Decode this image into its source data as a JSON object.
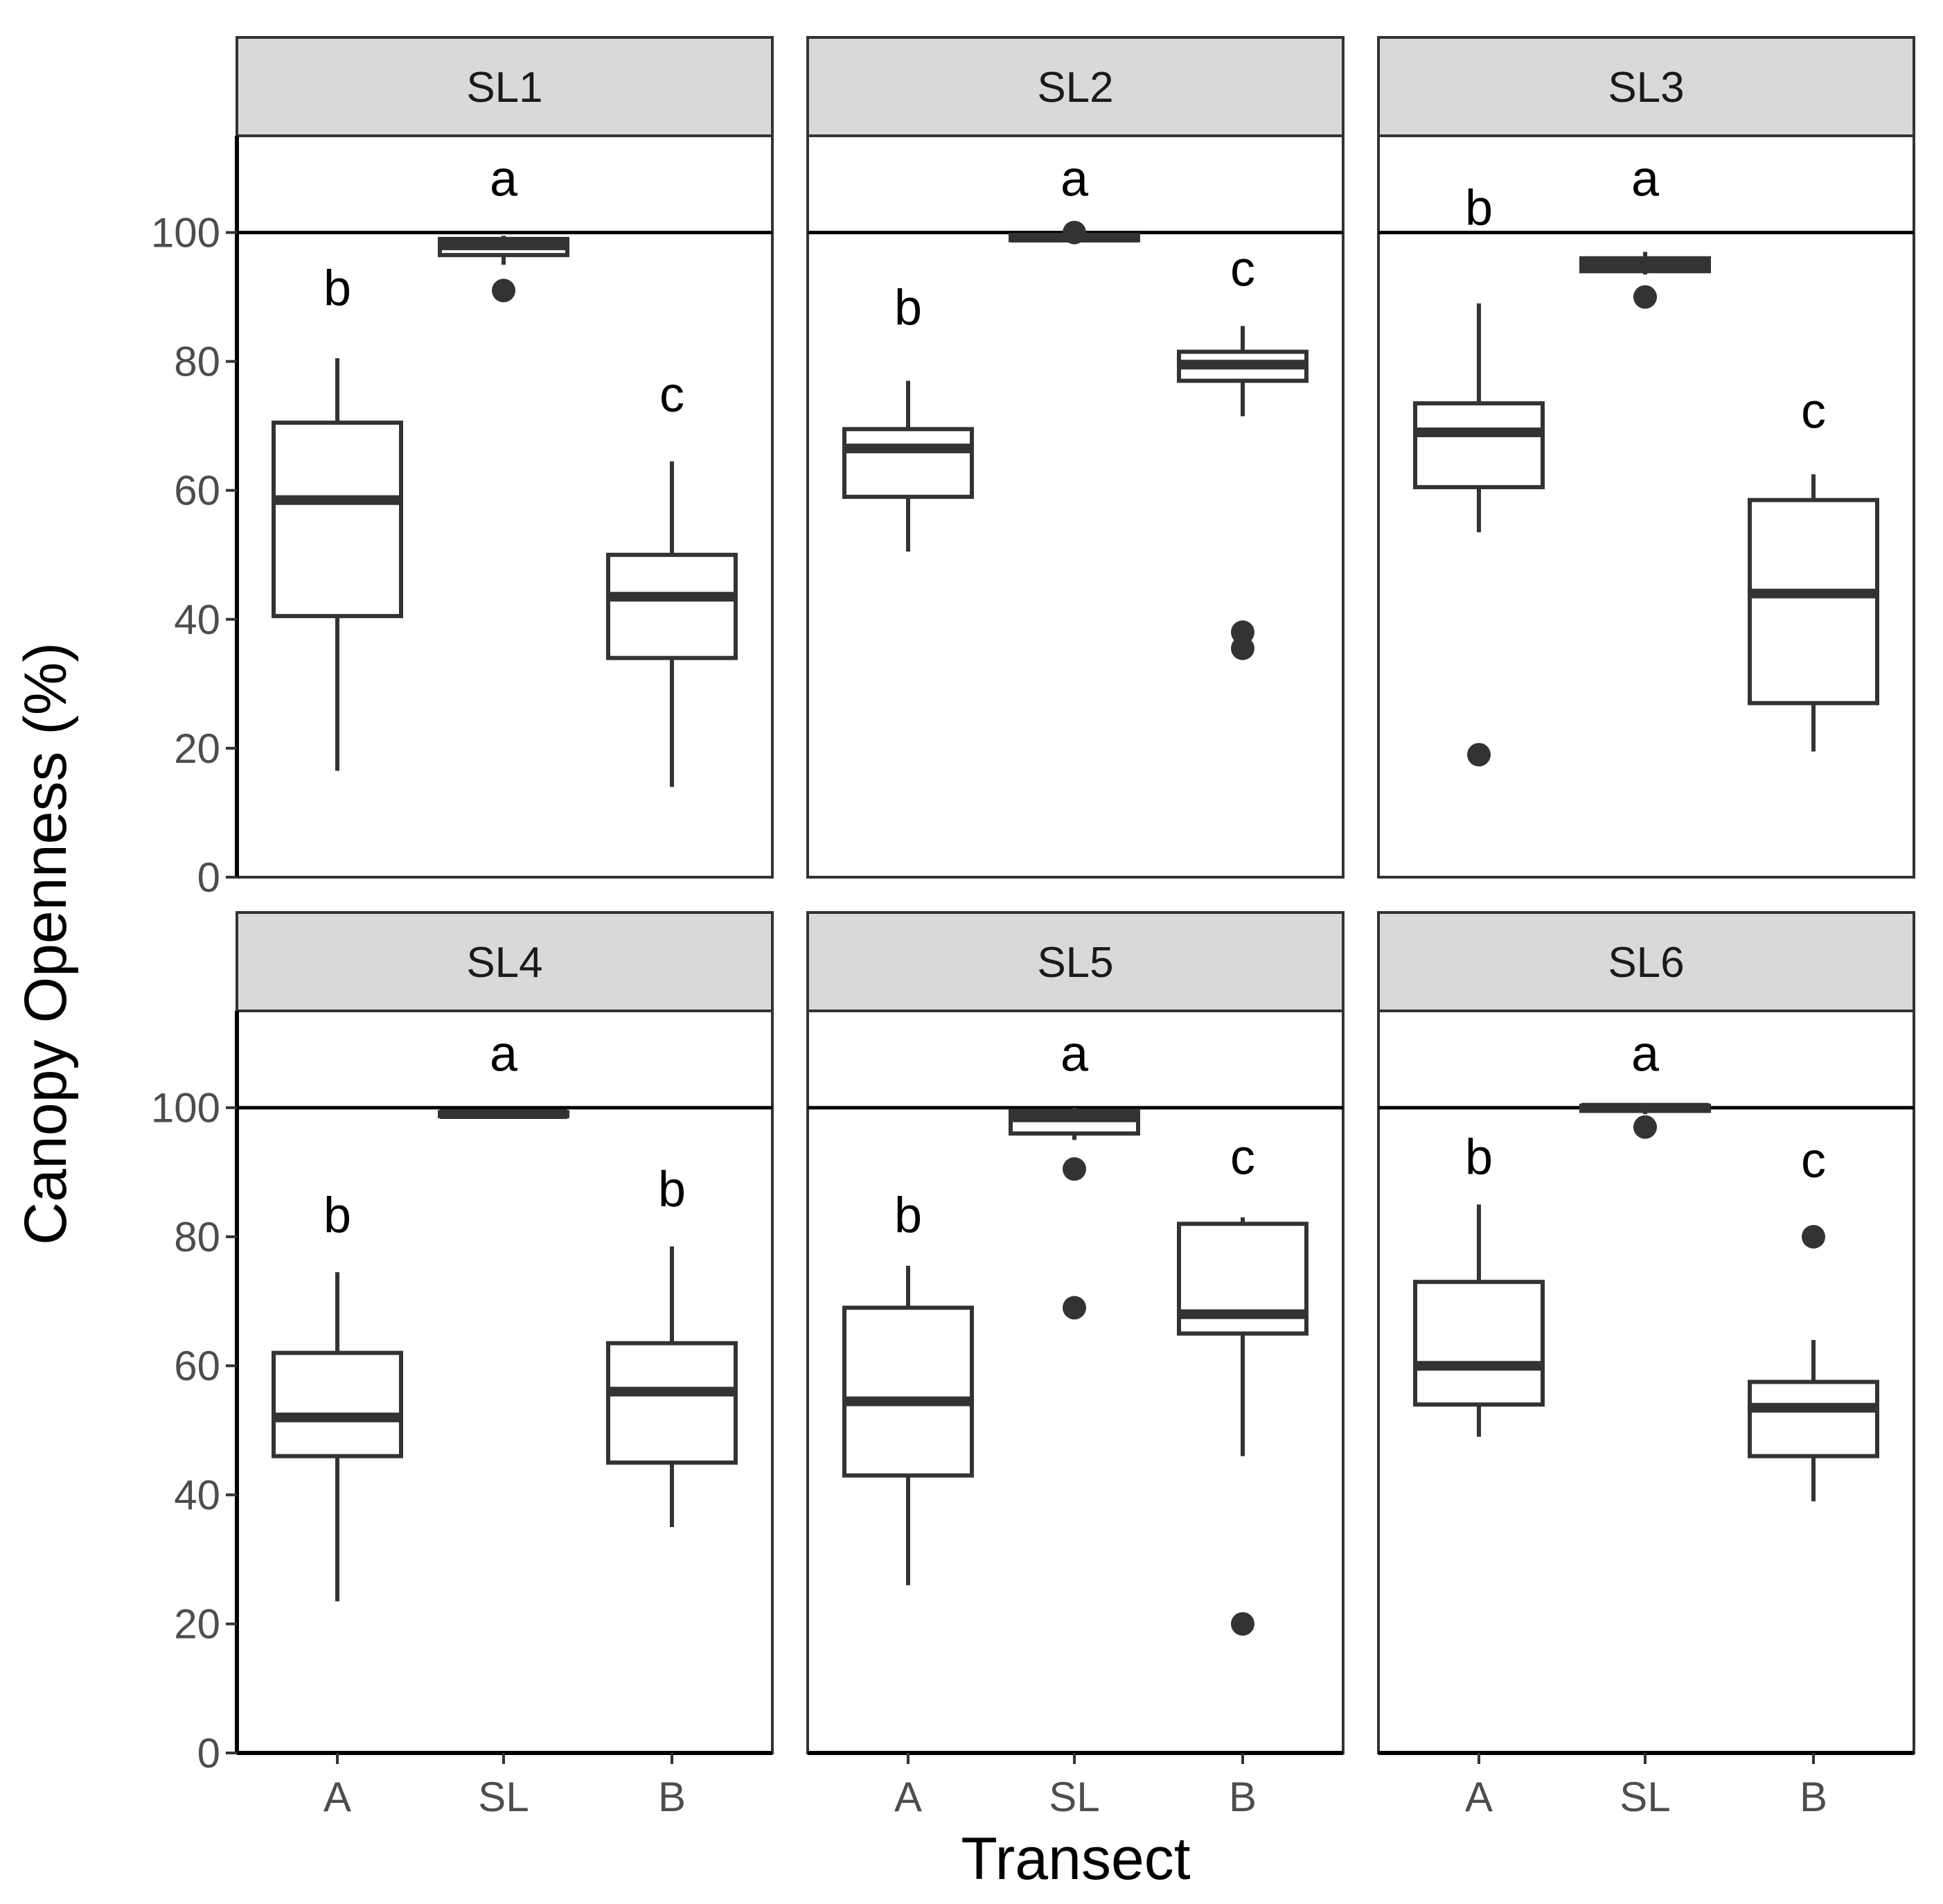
{
  "chart_data": {
    "type": "boxplot",
    "xlabel": "Transect",
    "ylabel": "Canopy Openness (%)",
    "categories": [
      "A",
      "SL",
      "B"
    ],
    "y_ticks": [
      "0",
      "20",
      "40",
      "60",
      "80",
      "100"
    ],
    "ylim": [
      0,
      115
    ],
    "reference_line": 100,
    "panels": [
      {
        "title": "SL1",
        "boxes": [
          {
            "cat": "A",
            "min": 16.5,
            "q1": 40.5,
            "median": 58.5,
            "q3": 70.5,
            "max": 80.5,
            "outliers": [],
            "letter": "b",
            "letter_y": 91.5
          },
          {
            "cat": "SL",
            "min": 95,
            "q1": 96.5,
            "median": 98,
            "q3": 99,
            "max": 99.5,
            "outliers": [
              91
            ],
            "letter": "a",
            "letter_y": 108.5
          },
          {
            "cat": "B",
            "min": 14,
            "q1": 34,
            "median": 43.5,
            "q3": 50,
            "max": 64.5,
            "outliers": [],
            "letter": "c",
            "letter_y": 75
          }
        ]
      },
      {
        "title": "SL2",
        "boxes": [
          {
            "cat": "A",
            "min": 50.5,
            "q1": 59,
            "median": 66.5,
            "q3": 69.5,
            "max": 77,
            "outliers": [],
            "letter": "b",
            "letter_y": 88.5
          },
          {
            "cat": "SL",
            "min": 98.5,
            "q1": 98.8,
            "median": 99.2,
            "q3": 99.6,
            "max": 100,
            "outliers": [
              100
            ],
            "letter": "a",
            "letter_y": 108.5
          },
          {
            "cat": "B",
            "min": 71.5,
            "q1": 77,
            "median": 79.5,
            "q3": 81.5,
            "max": 85.5,
            "outliers": [
              38,
              35.5
            ],
            "letter": "c",
            "letter_y": 94.5
          }
        ]
      },
      {
        "title": "SL3",
        "boxes": [
          {
            "cat": "A",
            "min": 53.5,
            "q1": 60.5,
            "median": 69,
            "q3": 73.5,
            "max": 89,
            "outliers": [
              19
            ],
            "letter": "b",
            "letter_y": 104
          },
          {
            "cat": "SL",
            "min": 93.5,
            "q1": 94,
            "median": 95,
            "q3": 96,
            "max": 97,
            "outliers": [
              90
            ],
            "letter": "a",
            "letter_y": 108.5
          },
          {
            "cat": "B",
            "min": 19.5,
            "q1": 27,
            "median": 44,
            "q3": 58.5,
            "max": 62.5,
            "outliers": [],
            "letter": "c",
            "letter_y": 72.5
          }
        ]
      },
      {
        "title": "SL4",
        "boxes": [
          {
            "cat": "A",
            "min": 23.5,
            "q1": 46,
            "median": 52,
            "q3": 62,
            "max": 74.5,
            "outliers": [],
            "letter": "b",
            "letter_y": 83.5
          },
          {
            "cat": "SL",
            "min": 98.5,
            "q1": 98.7,
            "median": 99,
            "q3": 99.3,
            "max": 99.5,
            "outliers": [],
            "letter": "a",
            "letter_y": 108.5
          },
          {
            "cat": "B",
            "min": 35,
            "q1": 45,
            "median": 56,
            "q3": 63.5,
            "max": 78.5,
            "outliers": [],
            "letter": "b",
            "letter_y": 87.5
          }
        ]
      },
      {
        "title": "SL5",
        "boxes": [
          {
            "cat": "A",
            "min": 26,
            "q1": 43,
            "median": 54.5,
            "q3": 69,
            "max": 75.5,
            "outliers": [],
            "letter": "b",
            "letter_y": 83.5
          },
          {
            "cat": "SL",
            "min": 95,
            "q1": 96,
            "median": 98.5,
            "q3": 99.5,
            "max": 100,
            "outliers": [
              90.5,
              69
            ],
            "letter": "a",
            "letter_y": 108.5
          },
          {
            "cat": "B",
            "min": 46,
            "q1": 65,
            "median": 68,
            "q3": 82,
            "max": 83,
            "outliers": [
              20
            ],
            "letter": "c",
            "letter_y": 92.5
          }
        ]
      },
      {
        "title": "SL6",
        "boxes": [
          {
            "cat": "A",
            "min": 49,
            "q1": 54,
            "median": 60,
            "q3": 73,
            "max": 85,
            "outliers": [],
            "letter": "b",
            "letter_y": 92.5
          },
          {
            "cat": "SL",
            "min": 99,
            "q1": 99.5,
            "median": 100,
            "q3": 100.3,
            "max": 100.5,
            "outliers": [
              97
            ],
            "letter": "a",
            "letter_y": 108.5
          },
          {
            "cat": "B",
            "min": 39,
            "q1": 46,
            "median": 53.5,
            "q3": 57.5,
            "max": 64,
            "outliers": [
              80
            ],
            "letter": "c",
            "letter_y": 92
          }
        ]
      }
    ]
  }
}
